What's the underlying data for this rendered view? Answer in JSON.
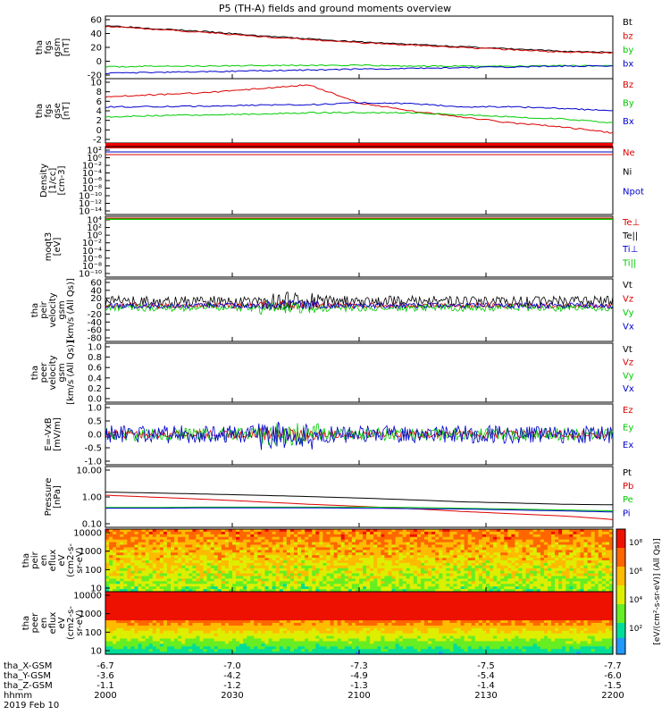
{
  "chart_data": {
    "type": "line",
    "title": "P5 (TH-A) fields and ground moments overview",
    "time_ticks": [
      "2000",
      "2030",
      "2100",
      "2130",
      "2200"
    ],
    "panels": [
      {
        "id": "fgs",
        "ylabel": [
          "tha",
          "fgs",
          "gsm",
          "[nT]"
        ],
        "ylim": [
          -20,
          60
        ],
        "yticks": [
          "60",
          "40",
          "20",
          "0",
          "-20"
        ],
        "legend": [
          "Bt",
          "bz",
          "by",
          "bx"
        ],
        "colors": [
          "#000000",
          "#dd0000",
          "#00cc00",
          "#0000cc"
        ],
        "series": [
          {
            "name": "Bt",
            "y": [
              48,
              44,
              40,
              35,
              31,
              27,
              24,
              21,
              18,
              15,
              14
            ]
          },
          {
            "name": "bz",
            "y": [
              47,
              43,
              39,
              34,
              30,
              26,
              23,
              20,
              17,
              14,
              13
            ]
          },
          {
            "name": "by",
            "y": [
              -5,
              -4,
              -4,
              -3,
              -3,
              -3,
              -4,
              -4,
              -4,
              -3,
              -4
            ]
          },
          {
            "name": "bx",
            "y": [
              -13,
              -12,
              -11,
              -10,
              -9,
              -8,
              -7,
              -6,
              -5,
              -4,
              -4
            ]
          }
        ]
      },
      {
        "id": "fgsdsl",
        "ylabel": [
          "tha",
          "fgs",
          "gse",
          "[nT]"
        ],
        "ylim": [
          -4,
          12
        ],
        "yticks": [
          "10",
          "8",
          "6",
          "4",
          "2",
          "0",
          "-2"
        ],
        "legend": [
          "Bz",
          "By",
          "Bx"
        ],
        "colors": [
          "#dd0000",
          "#00cc00",
          "#0000cc"
        ],
        "series": [
          {
            "name": "Bz",
            "y": [
              7.5,
              8,
              8.5,
              9.5,
              10.5,
              6,
              4,
              2.5,
              1,
              0,
              -1.5
            ]
          },
          {
            "name": "By",
            "y": [
              2.5,
              2.8,
              3,
              3.2,
              3.5,
              3.6,
              3.5,
              3,
              2.5,
              2,
              1
            ]
          },
          {
            "name": "Bx",
            "y": [
              5,
              5,
              5.2,
              5.4,
              5.5,
              6,
              5.8,
              5,
              5,
              4.6,
              4
            ]
          }
        ]
      },
      {
        "id": "density",
        "ylabel": [
          "Density",
          "[1/cc]",
          "[cm-3]"
        ],
        "yticks": [
          "10²",
          "10⁰",
          "10⁻²",
          "10⁻⁴",
          "10⁻⁶",
          "10⁻⁸",
          "10⁻¹⁰",
          "10⁻¹²",
          "10⁻¹⁴"
        ],
        "legend": [
          "Ne",
          "Ni",
          "Npot"
        ],
        "colors": [
          "#dd0000",
          "#000000",
          "#0000cc"
        ]
      },
      {
        "id": "temp",
        "ylabel": [
          "moqt3",
          "[eV]"
        ],
        "yticks": [
          "10⁴",
          "10²",
          "10⁰",
          "10⁻²",
          "10⁻⁴",
          "10⁻⁶",
          "10⁻⁸",
          "10⁻¹⁰"
        ],
        "legend": [
          "Te⊥",
          "Te||",
          "Ti⊥",
          "Ti||"
        ],
        "colors": [
          "#dd0000",
          "#000000",
          "#0000cc",
          "#00cc00"
        ]
      },
      {
        "id": "peirvel",
        "ylabel": [
          "tha",
          "peir",
          "velocity",
          "gsm",
          "[km/s (All Qs)]"
        ],
        "ylim": [
          -80,
          60
        ],
        "yticks": [
          "60",
          "40",
          "20",
          "0",
          "-20",
          "-40",
          "-60",
          "-80"
        ],
        "legend": [
          "Vt",
          "Vz",
          "Vy",
          "Vx"
        ],
        "colors": [
          "#000000",
          "#dd0000",
          "#00cc00",
          "#0000cc"
        ]
      },
      {
        "id": "peervel",
        "ylabel": [
          "tha",
          "peer",
          "velocity",
          "gsm",
          "[km/s (All Qs)]"
        ],
        "ylim": [
          0,
          1
        ],
        "yticks": [
          "1.0",
          "0.8",
          "0.6",
          "0.4",
          "0.2",
          "0.0"
        ],
        "legend": [
          "Vt",
          "Vz",
          "Vy",
          "Vx"
        ],
        "colors": [
          "#000000",
          "#dd0000",
          "#00cc00",
          "#0000cc"
        ]
      },
      {
        "id": "efield",
        "ylabel": [
          "E=-VxB",
          "[mV/m]"
        ],
        "ylim": [
          -1.2,
          1.2
        ],
        "yticks": [
          "1.0",
          "0.5",
          "0.0",
          "-0.5",
          "-1.0"
        ],
        "legend": [
          "Ez",
          "Ey",
          "Ex"
        ],
        "colors": [
          "#dd0000",
          "#00cc00",
          "#0000cc"
        ]
      },
      {
        "id": "pressure",
        "ylabel": [
          "Pressure",
          "[nPa]"
        ],
        "yticks": [
          "10.00",
          "1.00",
          "0.10"
        ],
        "legend": [
          "Pt",
          "Pb",
          "Pe",
          "Pi"
        ],
        "colors": [
          "#000000",
          "#dd0000",
          "#00cc00",
          "#0000cc"
        ],
        "series": [
          {
            "name": "Pt",
            "y": [
              1.2,
              1.1,
              1.0,
              0.9,
              0.8,
              0.7,
              0.6,
              0.5,
              0.45,
              0.4,
              0.38
            ]
          },
          {
            "name": "Pb",
            "y": [
              0.9,
              0.75,
              0.62,
              0.5,
              0.4,
              0.33,
              0.27,
              0.21,
              0.17,
              0.14,
              0.1
            ]
          },
          {
            "name": "Pe",
            "y": [
              0.3,
              0.3,
              0.31,
              0.31,
              0.31,
              0.31,
              0.3,
              0.28,
              0.26,
              0.24,
              0.22
            ]
          },
          {
            "name": "Pi",
            "y": [
              0.28,
              0.28,
              0.29,
              0.29,
              0.29,
              0.28,
              0.27,
              0.26,
              0.24,
              0.22,
              0.2
            ]
          }
        ]
      },
      {
        "id": "peirspec",
        "ylabel": [
          "tha",
          "peir",
          "en",
          "eflux",
          "eV",
          "(cm2-s-",
          "sr-eV)"
        ],
        "yticks": [
          "10000",
          "1000",
          "100",
          "10"
        ]
      },
      {
        "id": "peerspec",
        "ylabel": [
          "tha",
          "peer",
          "en",
          "eflux",
          "eV",
          "(cm2-s-",
          "sr-eV)"
        ],
        "yticks": [
          "10000",
          "1000",
          "100",
          "10"
        ]
      }
    ],
    "colorbar": {
      "label": "[eV/(cm²-s-sr-eV)] (All Qs)]",
      "ticks": [
        "10⁸",
        "10⁶",
        "10⁴",
        "10²"
      ]
    },
    "footer": {
      "rows": [
        {
          "label": "tha_X-GSM",
          "values": [
            "-6.7",
            "-7.0",
            "-7.3",
            "-7.5",
            "-7.7"
          ]
        },
        {
          "label": "tha_Y-GSM",
          "values": [
            "-3.6",
            "-4.2",
            "-4.9",
            "-5.4",
            "-6.0"
          ]
        },
        {
          "label": "tha_Z-GSM",
          "values": [
            "-1.1",
            "-1.2",
            "-1.3",
            "-1.4",
            "-1.5"
          ]
        },
        {
          "label": "hhmm",
          "values": [
            "2000",
            "2030",
            "2100",
            "2130",
            "2200"
          ]
        }
      ],
      "date": "2019 Feb 10"
    }
  }
}
